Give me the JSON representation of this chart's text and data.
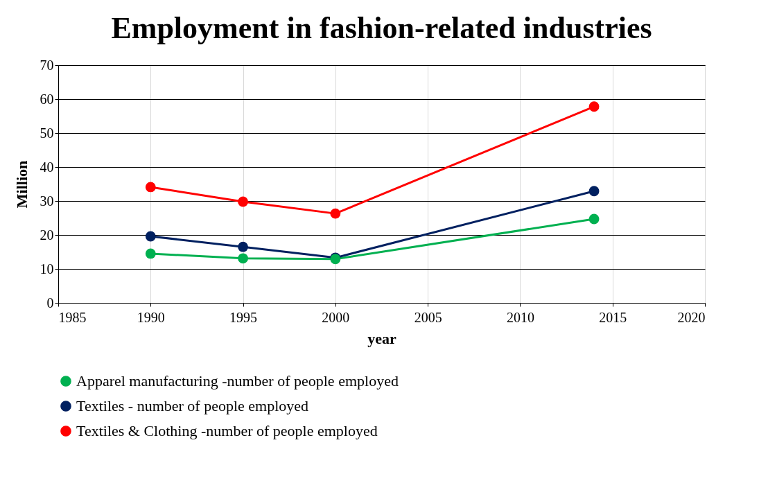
{
  "chart_data": {
    "type": "line",
    "title": "Employment in fashion-related industries",
    "xlabel": "year",
    "ylabel": "Million",
    "x": [
      1990,
      1995,
      2000,
      2014
    ],
    "series": [
      {
        "name": "Apparel manufacturing -number of people employed",
        "color": "#00b050",
        "values": [
          14.5,
          13.1,
          12.9,
          24.7
        ]
      },
      {
        "name": "Textiles - number of people employed",
        "color": "#002060",
        "values": [
          19.6,
          16.5,
          13.3,
          32.9
        ]
      },
      {
        "name": "Textiles & Clothing -number of people employed",
        "color": "#ff0000",
        "values": [
          34.1,
          29.8,
          26.3,
          57.8
        ]
      }
    ],
    "xlim": [
      1985,
      2020
    ],
    "xticks": [
      1985,
      1990,
      1995,
      2000,
      2005,
      2010,
      2015,
      2020
    ],
    "ylim": [
      0,
      70
    ],
    "yticks": [
      0,
      10,
      20,
      30,
      40,
      50,
      60,
      70
    ],
    "grid": true,
    "legend": "bottom",
    "marker": "circle",
    "line_style": "solid"
  }
}
